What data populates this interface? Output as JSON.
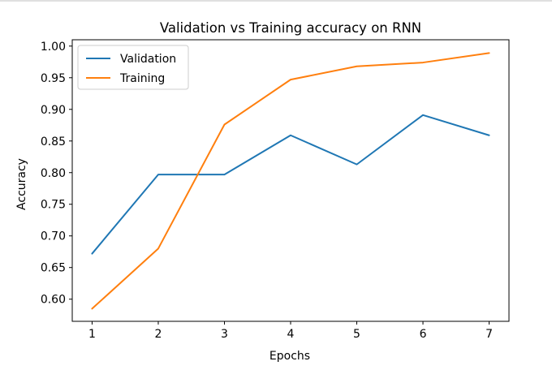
{
  "chart_data": {
    "type": "line",
    "title": "Validation vs Training accuracy on RNN",
    "xlabel": "Epochs",
    "ylabel": "Accuracy",
    "x": [
      1,
      2,
      3,
      4,
      5,
      6,
      7
    ],
    "xlim": [
      0.7,
      7.3
    ],
    "ylim": [
      0.565,
      1.01
    ],
    "xticks": [
      "1",
      "2",
      "3",
      "4",
      "5",
      "6",
      "7"
    ],
    "yticks": [
      "0.60",
      "0.65",
      "0.70",
      "0.75",
      "0.80",
      "0.85",
      "0.90",
      "0.95",
      "1.00"
    ],
    "grid": false,
    "legend_position": "top-left",
    "series": [
      {
        "name": "Validation",
        "color": "#1f77b4",
        "values": [
          0.672,
          0.797,
          0.797,
          0.859,
          0.813,
          0.891,
          0.859
        ]
      },
      {
        "name": "Training",
        "color": "#ff7f0e",
        "values": [
          0.585,
          0.68,
          0.876,
          0.947,
          0.968,
          0.974,
          0.989
        ]
      }
    ]
  }
}
